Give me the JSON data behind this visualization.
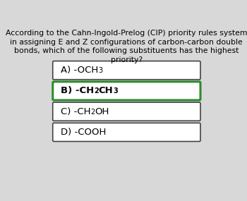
{
  "background_color": "#d8d8d8",
  "boxes_bg": "#ffffff",
  "question_lines": [
    "According to the Cahn-Ingold-Prelog (CIP) priority rules system",
    "in assigning E and Z configurations of carbon-carbon double",
    "bonds, which of the following substituents has the highest",
    "priority?"
  ],
  "options": [
    {
      "main": "A) -OCH",
      "sub1": "3",
      "sub1_after": "",
      "main2": "",
      "sub2": "",
      "main3": "",
      "bold": false,
      "border_color": "#444444",
      "border_width": 1.2
    },
    {
      "main": "B) -CH",
      "sub1": "2",
      "sub1_after": "CH",
      "main2": "",
      "sub2": "3",
      "main3": "",
      "bold": true,
      "border_color": "#2e8b2e",
      "border_width": 2.2
    },
    {
      "main": "C) -CH",
      "sub1": "2",
      "sub1_after": "OH",
      "main2": "",
      "sub2": "",
      "main3": "",
      "bold": false,
      "border_color": "#444444",
      "border_width": 1.2
    },
    {
      "main": "D) -COOH",
      "sub1": "",
      "sub1_after": "",
      "main2": "",
      "sub2": "",
      "main3": "",
      "bold": false,
      "border_color": "#444444",
      "border_width": 1.2
    }
  ],
  "question_fontsize": 7.8,
  "option_fontsize": 9.5,
  "sub_fontsize": 7.0,
  "fig_width": 3.5,
  "fig_height": 2.85,
  "dpi": 100
}
